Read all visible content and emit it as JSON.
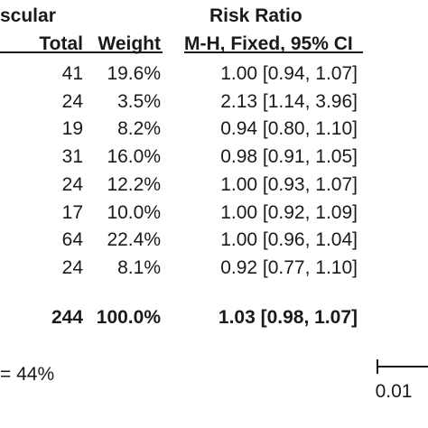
{
  "chart_data": {
    "type": "table",
    "headers": {
      "group_partial": "scular",
      "effect_title": "Risk Ratio",
      "col_total": "Total",
      "col_weight": "Weight",
      "col_ci": "M-H, Fixed, 95% CI"
    },
    "rows": [
      {
        "total": "41",
        "weight": "19.6%",
        "ci": "1.00 [0.94, 1.07]"
      },
      {
        "total": "24",
        "weight": "3.5%",
        "ci": "2.13 [1.14, 3.96]"
      },
      {
        "total": "19",
        "weight": "8.2%",
        "ci": "0.94 [0.80, 1.10]"
      },
      {
        "total": "31",
        "weight": "16.0%",
        "ci": "0.98 [0.91, 1.05]"
      },
      {
        "total": "24",
        "weight": "12.2%",
        "ci": "1.00 [0.93, 1.07]"
      },
      {
        "total": "17",
        "weight": "10.0%",
        "ci": "1.00 [0.92, 1.09]"
      },
      {
        "total": "64",
        "weight": "22.4%",
        "ci": "1.00 [0.96, 1.04]"
      },
      {
        "total": "24",
        "weight": "8.1%",
        "ci": "0.92 [0.77, 1.10]"
      }
    ],
    "total_row": {
      "total": "244",
      "weight": "100.0%",
      "ci": "1.03 [0.98, 1.07]"
    },
    "heterogeneity_partial": "= 44%",
    "axis_tick": "0.01"
  }
}
